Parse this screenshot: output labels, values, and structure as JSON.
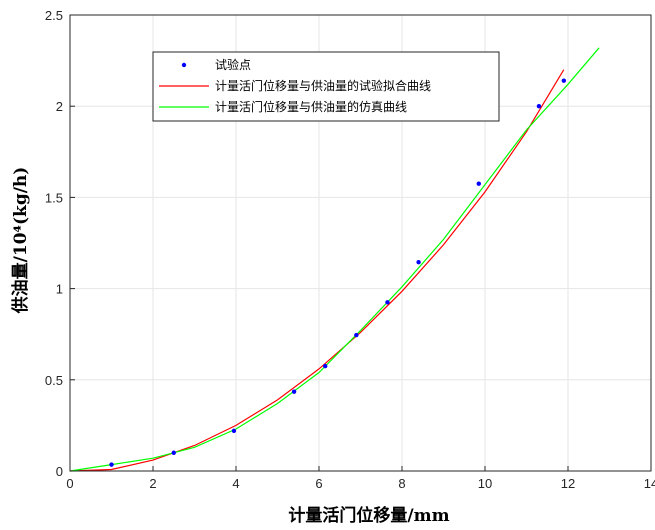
{
  "chart_data": {
    "type": "line",
    "title": "",
    "xlabel": "计量活门位移量/mm",
    "ylabel": "供油量/10⁴(kg/h)",
    "xlim": [
      0,
      14
    ],
    "ylim": [
      0,
      2.5
    ],
    "xticks": [
      "0",
      "2",
      "4",
      "6",
      "8",
      "10",
      "12",
      "14"
    ],
    "yticks": [
      "0",
      "0.5",
      "1",
      "1.5",
      "2",
      "2.5"
    ],
    "grid": true,
    "legend_position": "top-left",
    "series": [
      {
        "name": "试验点",
        "kind": "scatter",
        "color": "#0000ff",
        "x": [
          1.0,
          2.5,
          3.95,
          5.4,
          6.15,
          6.9,
          7.65,
          8.4,
          9.85,
          11.3,
          11.9
        ],
        "y": [
          0.035,
          0.1,
          0.22,
          0.435,
          0.575,
          0.745,
          0.925,
          1.145,
          1.575,
          2.0,
          2.14
        ]
      },
      {
        "name": "计量活门位移量与供油量的试验拟合曲线",
        "kind": "line",
        "color": "#ff0000",
        "x": [
          0,
          1,
          2,
          3,
          4,
          5,
          6,
          7,
          8,
          9,
          10,
          11,
          11.9
        ],
        "y": [
          0.0,
          0.008,
          0.06,
          0.14,
          0.25,
          0.39,
          0.56,
          0.76,
          0.985,
          1.24,
          1.53,
          1.86,
          2.2
        ]
      },
      {
        "name": "计量活门位移量与供油量的仿真曲线",
        "kind": "line",
        "color": "#00ff00",
        "x": [
          0,
          1,
          2,
          3,
          4,
          5,
          6,
          7,
          8,
          9,
          10,
          11,
          12,
          12.75
        ],
        "y": [
          0.0,
          0.035,
          0.07,
          0.13,
          0.23,
          0.37,
          0.54,
          0.77,
          1.01,
          1.27,
          1.57,
          1.87,
          2.12,
          2.32
        ]
      }
    ]
  }
}
